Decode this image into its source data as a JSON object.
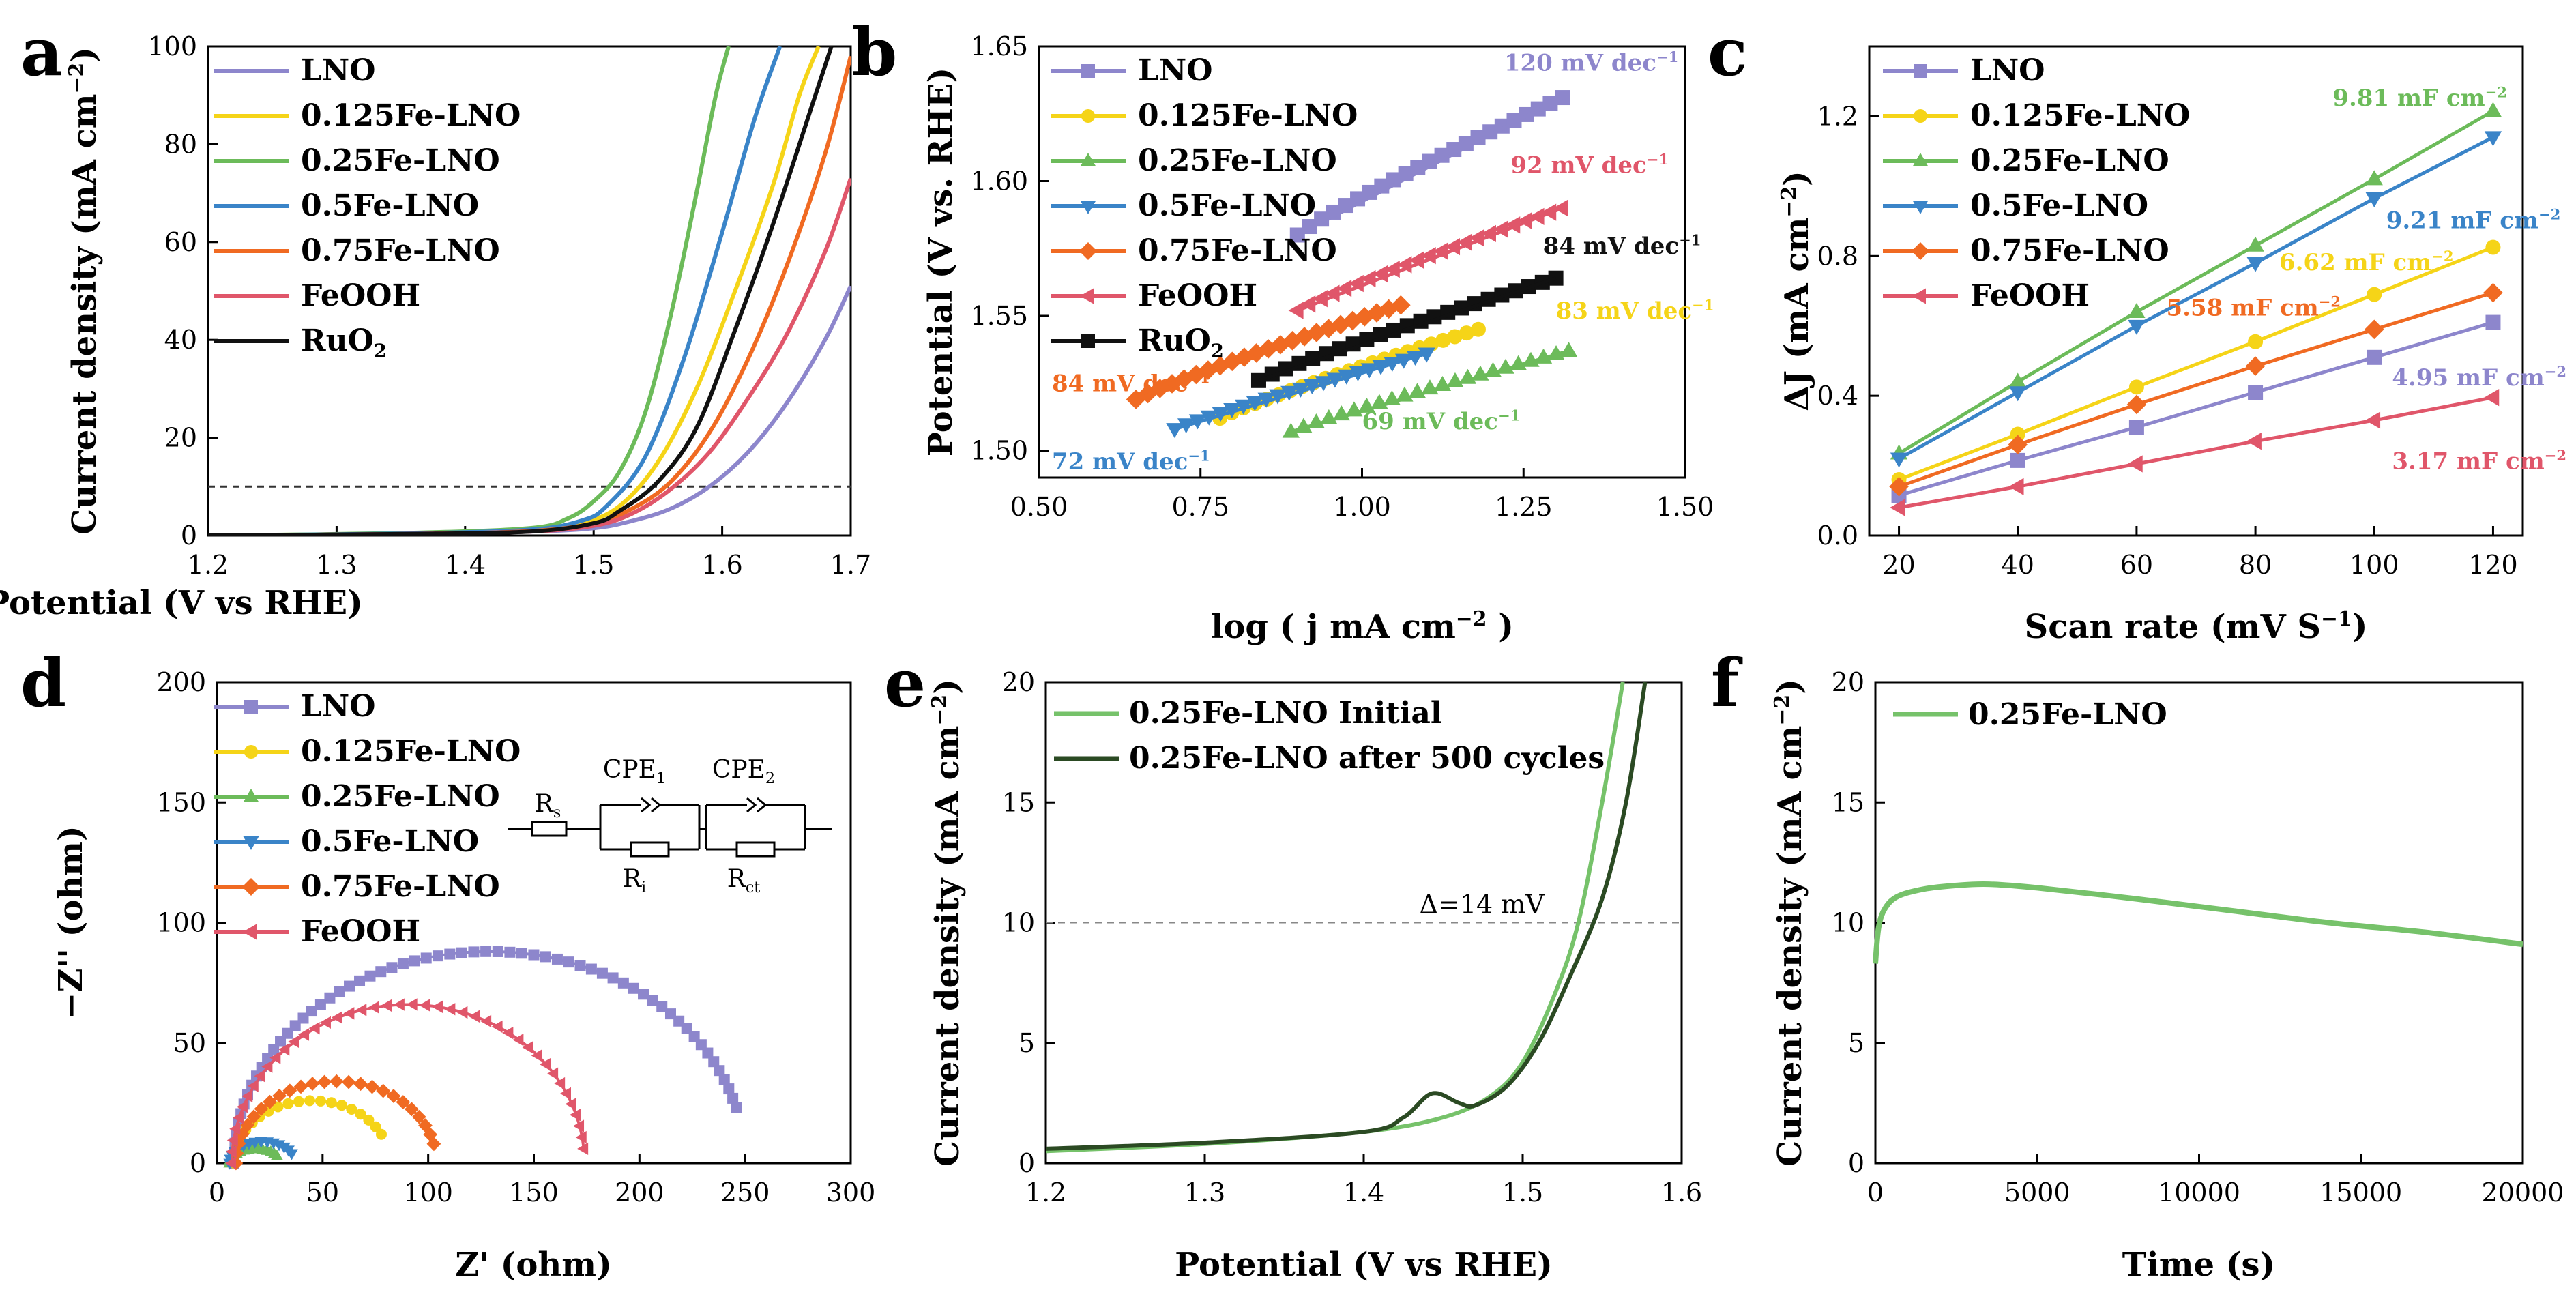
{
  "colors": {
    "LNO": "#8d86cc",
    "0.125Fe-LNO": "#f5d418",
    "0.25Fe-LNO": "#6cbb5a",
    "0.5Fe-LNO": "#3a84c8",
    "0.75Fe-LNO": "#f06a22",
    "FeOOH": "#e0566a",
    "RuO2": "#111111",
    "initial": "#76c26a",
    "after": "#2b4a23",
    "ref": "#888888"
  },
  "chart_data": [
    {
      "panel_label": "a",
      "type": "line",
      "title": "",
      "xlabel": "Potential (V vs RHE)",
      "ylabel": "Current density (mA cm",
      "ylabel_sup": "−2",
      "ylabel_end": ")",
      "xlim": [
        1.2,
        1.7
      ],
      "ylim": [
        0,
        100
      ],
      "xticks": [
        "1.2",
        "1.3",
        "1.4",
        "1.5",
        "1.6",
        "1.7"
      ],
      "yticks": [
        "0",
        "20",
        "40",
        "60",
        "80",
        "100"
      ],
      "ref_line_y": 10,
      "legend": [
        "LNO",
        "0.125Fe-LNO",
        "0.25Fe-LNO",
        "0.5Fe-LNO",
        "0.75Fe-LNO",
        "FeOOH",
        "RuO"
      ],
      "legend_sub_last": "2",
      "series": [
        {
          "name": "LNO",
          "x": [
            1.2,
            1.35,
            1.45,
            1.5,
            1.53,
            1.56,
            1.59,
            1.62,
            1.65,
            1.68,
            1.7
          ],
          "y": [
            0,
            0.3,
            0.8,
            1.5,
            3,
            5.5,
            10,
            17,
            27,
            40,
            51
          ]
        },
        {
          "name": "0.125Fe-LNO",
          "x": [
            1.2,
            1.35,
            1.45,
            1.49,
            1.52,
            1.55,
            1.58,
            1.61,
            1.64,
            1.66,
            1.675
          ],
          "y": [
            0,
            0.4,
            1,
            2.5,
            6,
            15,
            30,
            50,
            72,
            90,
            100
          ]
        },
        {
          "name": "0.25Fe-LNO",
          "x": [
            1.2,
            1.35,
            1.45,
            1.48,
            1.5,
            1.52,
            1.54,
            1.56,
            1.58,
            1.595,
            1.605
          ],
          "y": [
            0,
            0.5,
            1.5,
            3.5,
            7,
            13,
            25,
            45,
            70,
            90,
            100
          ]
        },
        {
          "name": "0.5Fe-LNO",
          "x": [
            1.2,
            1.35,
            1.45,
            1.49,
            1.51,
            1.54,
            1.57,
            1.6,
            1.625,
            1.645
          ],
          "y": [
            0,
            0.4,
            1.2,
            3,
            6,
            16,
            36,
            62,
            85,
            100
          ]
        },
        {
          "name": "0.75Fe-LNO",
          "x": [
            1.2,
            1.35,
            1.45,
            1.5,
            1.53,
            1.56,
            1.59,
            1.62,
            1.65,
            1.68,
            1.7
          ],
          "y": [
            0,
            0.3,
            0.9,
            2.5,
            5.5,
            11,
            21,
            36,
            55,
            78,
            98
          ]
        },
        {
          "name": "FeOOH",
          "x": [
            1.2,
            1.35,
            1.45,
            1.5,
            1.53,
            1.56,
            1.59,
            1.62,
            1.65,
            1.68,
            1.7
          ],
          "y": [
            0,
            0.3,
            0.8,
            2,
            4.5,
            9.5,
            17,
            28,
            41,
            58,
            73
          ]
        },
        {
          "name": "RuO2",
          "x": [
            1.2,
            1.35,
            1.45,
            1.5,
            1.52,
            1.55,
            1.58,
            1.61,
            1.64,
            1.67,
            1.685
          ],
          "y": [
            0,
            0.3,
            0.8,
            2.5,
            5,
            11,
            22,
            42,
            64,
            88,
            100
          ]
        }
      ]
    },
    {
      "panel_label": "b",
      "type": "scatter",
      "xlabel": "log ( j mA cm",
      "xlabel_sup": "−2",
      "xlabel_end": " )",
      "ylabel": "Potential (V vs. RHE)",
      "xlim": [
        0.5,
        1.5
      ],
      "ylim": [
        1.49,
        1.65
      ],
      "xticks": [
        "0.50",
        "0.75",
        "1.00",
        "1.25",
        "1.50"
      ],
      "yticks": [
        "1.50",
        "1.55",
        "1.60",
        "1.65"
      ],
      "legend": [
        "LNO",
        "0.125Fe-LNO",
        "0.25Fe-LNO",
        "0.5Fe-LNO",
        "0.75Fe-LNO",
        "FeOOH",
        "RuO"
      ],
      "legend_sub_last": "2",
      "series": [
        {
          "name": "LNO",
          "x0": 0.9,
          "x1": 1.31,
          "y0": 1.58,
          "y1": 1.631
        },
        {
          "name": "0.125Fe-LNO",
          "x0": 0.78,
          "x1": 1.18,
          "y0": 1.512,
          "y1": 1.545
        },
        {
          "name": "0.25Fe-LNO",
          "x0": 0.89,
          "x1": 1.32,
          "y0": 1.507,
          "y1": 1.537
        },
        {
          "name": "0.5Fe-LNO",
          "x0": 0.71,
          "x1": 1.1,
          "y0": 1.508,
          "y1": 1.536
        },
        {
          "name": "0.75Fe-LNO",
          "x0": 0.65,
          "x1": 1.06,
          "y0": 1.519,
          "y1": 1.554
        },
        {
          "name": "FeOOH",
          "x0": 0.9,
          "x1": 1.31,
          "y0": 1.552,
          "y1": 1.59
        },
        {
          "name": "RuO2",
          "x0": 0.84,
          "x1": 1.3,
          "y0": 1.526,
          "y1": 1.564
        }
      ],
      "annotations": [
        {
          "text": "120 mV dec",
          "sup": "−1",
          "series": "LNO",
          "x": 1.22,
          "y": 1.641
        },
        {
          "text": "92 mV dec",
          "sup": "−1",
          "series": "FeOOH",
          "x": 1.23,
          "y": 1.603
        },
        {
          "text": "84 mV dec",
          "sup": "−1",
          "series": "RuO2",
          "x": 1.28,
          "y": 1.573
        },
        {
          "text": "83 mV dec",
          "sup": "−1",
          "series": "0.125Fe-LNO",
          "x": 1.3,
          "y": 1.549
        },
        {
          "text": "84 mV dec",
          "sup": "−1",
          "series": "0.75Fe-LNO",
          "x": 0.52,
          "y": 1.522
        },
        {
          "text": "69 mV dec",
          "sup": "−1",
          "series": "0.25Fe-LNO",
          "x": 1.0,
          "y": 1.508
        },
        {
          "text": "72 mV dec",
          "sup": "−1",
          "series": "0.5Fe-LNO",
          "x": 0.52,
          "y": 1.493
        }
      ]
    },
    {
      "panel_label": "c",
      "type": "line",
      "xlabel": "Scan rate (mV S",
      "xlabel_sup": "−1",
      "xlabel_end": ")",
      "ylabel": "ΔJ (mA cm",
      "ylabel_sup": "−2",
      "ylabel_end": ")",
      "xlim": [
        15,
        125
      ],
      "ylim": [
        0,
        1.4
      ],
      "xticks": [
        "20",
        "40",
        "60",
        "80",
        "100",
        "120"
      ],
      "yticks": [
        "0.0",
        "0.4",
        "0.8",
        "1.2"
      ],
      "legend": [
        "LNO",
        "0.125Fe-LNO",
        "0.25Fe-LNO",
        "0.5Fe-LNO",
        "0.75Fe-LNO",
        "FeOOH"
      ],
      "x": [
        20,
        40,
        60,
        80,
        100,
        120
      ],
      "series": [
        {
          "name": "LNO",
          "values": [
            0.115,
            0.215,
            0.31,
            0.41,
            0.51,
            0.61
          ]
        },
        {
          "name": "0.125Fe-LNO",
          "values": [
            0.16,
            0.29,
            0.425,
            0.555,
            0.69,
            0.825
          ]
        },
        {
          "name": "0.25Fe-LNO",
          "values": [
            0.235,
            0.44,
            0.64,
            0.83,
            1.02,
            1.215
          ]
        },
        {
          "name": "0.5Fe-LNO",
          "values": [
            0.22,
            0.41,
            0.6,
            0.78,
            0.965,
            1.14
          ]
        },
        {
          "name": "0.75Fe-LNO",
          "values": [
            0.14,
            0.26,
            0.375,
            0.485,
            0.59,
            0.695
          ]
        },
        {
          "name": "FeOOH",
          "values": [
            0.08,
            0.14,
            0.205,
            0.27,
            0.33,
            0.395
          ]
        }
      ],
      "annotations": [
        {
          "text": "9.81 mF cm",
          "sup": "−2",
          "series": "0.25Fe-LNO",
          "x": 93,
          "y": 1.23
        },
        {
          "text": "9.21 mF cm",
          "sup": "−2",
          "series": "0.5Fe-LNO",
          "x": 102,
          "y": 0.88
        },
        {
          "text": "6.62 mF cm",
          "sup": "−2",
          "series": "0.125Fe-LNO",
          "x": 84,
          "y": 0.76
        },
        {
          "text": "5.58 mF cm",
          "sup": "−2",
          "series": "0.75Fe-LNO",
          "x": 65,
          "y": 0.63
        },
        {
          "text": "4.95 mF cm",
          "sup": "−2",
          "series": "LNO",
          "x": 103,
          "y": 0.43
        },
        {
          "text": "3.17 mF cm",
          "sup": "−2",
          "series": "FeOOH",
          "x": 103,
          "y": 0.19
        }
      ]
    },
    {
      "panel_label": "d",
      "type": "scatter",
      "xlabel": "Z' (ohm)",
      "ylabel": "−Z'' (ohm)",
      "xlim": [
        0,
        300
      ],
      "ylim": [
        0,
        200
      ],
      "xticks": [
        "0",
        "50",
        "100",
        "150",
        "200",
        "250",
        "300"
      ],
      "yticks": [
        "0",
        "50",
        "100",
        "150",
        "200"
      ],
      "legend": [
        "LNO",
        "0.125Fe-LNO",
        "0.25Fe-LNO",
        "0.5Fe-LNO",
        "0.75Fe-LNO",
        "FeOOH"
      ],
      "circuit_labels": {
        "rs": "R",
        "rs_sub": "s",
        "cpe1": "CPE",
        "cpe1_sub": "1",
        "cpe2": "CPE",
        "cpe2_sub": "2",
        "ri": "R",
        "ri_sub": "i",
        "rct": "R",
        "rct_sub": "ct"
      },
      "series": [
        {
          "name": "LNO",
          "start": 8,
          "end": 250,
          "peak": 88,
          "end_y": 23
        },
        {
          "name": "0.125Fe-LNO",
          "start": 8,
          "end": 82,
          "peak": 26,
          "end_y": 12
        },
        {
          "name": "0.25Fe-LNO",
          "start": 6,
          "end": 30,
          "peak": 6,
          "end_y": 3
        },
        {
          "name": "0.5Fe-LNO",
          "start": 6,
          "end": 37,
          "peak": 9,
          "end_y": 4
        },
        {
          "name": "0.75Fe-LNO",
          "start": 9,
          "end": 104,
          "peak": 34,
          "end_y": 8
        },
        {
          "name": "FeOOH",
          "start": 7,
          "end": 174,
          "peak": 66,
          "end_y": 6
        }
      ]
    },
    {
      "panel_label": "e",
      "type": "line",
      "xlabel": "Potential (V vs RHE)",
      "ylabel": "Current density (mA cm",
      "ylabel_sup": "−2",
      "ylabel_end": ")",
      "xlim": [
        1.2,
        1.6
      ],
      "ylim": [
        0,
        20
      ],
      "xticks": [
        "1.2",
        "1.3",
        "1.4",
        "1.5",
        "1.6"
      ],
      "yticks": [
        "0",
        "5",
        "10",
        "15",
        "20"
      ],
      "ref_line_y": 10,
      "annotation": "Δ=14 mV",
      "legend": [
        "0.25Fe-LNO Initial",
        "0.25Fe-LNO after 500 cycles"
      ],
      "series": [
        {
          "name": "0.25Fe-LNO Initial",
          "x": [
            1.2,
            1.3,
            1.4,
            1.45,
            1.48,
            1.5,
            1.52,
            1.535,
            1.55,
            1.563
          ],
          "y": [
            0.5,
            0.8,
            1.3,
            1.9,
            2.8,
            4.2,
            7,
            10,
            15,
            20
          ]
        },
        {
          "name": "0.25Fe-LNO after 500 cycles",
          "x": [
            1.2,
            1.3,
            1.4,
            1.425,
            1.443,
            1.46,
            1.47,
            1.49,
            1.51,
            1.53,
            1.55,
            1.565,
            1.577
          ],
          "y": [
            0.6,
            0.85,
            1.3,
            1.9,
            2.9,
            2.5,
            2.4,
            3.2,
            5,
            7.8,
            11,
            15,
            20
          ]
        }
      ]
    },
    {
      "panel_label": "f",
      "type": "line",
      "xlabel": "Time (s)",
      "ylabel": "Current density (mA cm",
      "ylabel_sup": "−2",
      "ylabel_end": ")",
      "xlim": [
        0,
        20000
      ],
      "ylim": [
        0,
        20
      ],
      "xticks": [
        "0",
        "5000",
        "10000",
        "15000",
        "20000"
      ],
      "yticks": [
        "0",
        "5",
        "10",
        "15",
        "20"
      ],
      "legend": [
        "0.25Fe-LNO"
      ],
      "series": [
        {
          "name": "0.25Fe-LNO",
          "x": [
            0,
            100,
            300,
            700,
            1500,
            2500,
            3500,
            5000,
            8000,
            11000,
            14000,
            17000,
            20000
          ],
          "y": [
            8.3,
            9.8,
            10.6,
            11.1,
            11.4,
            11.55,
            11.6,
            11.45,
            11.0,
            10.5,
            10.0,
            9.6,
            9.1
          ]
        }
      ]
    }
  ]
}
